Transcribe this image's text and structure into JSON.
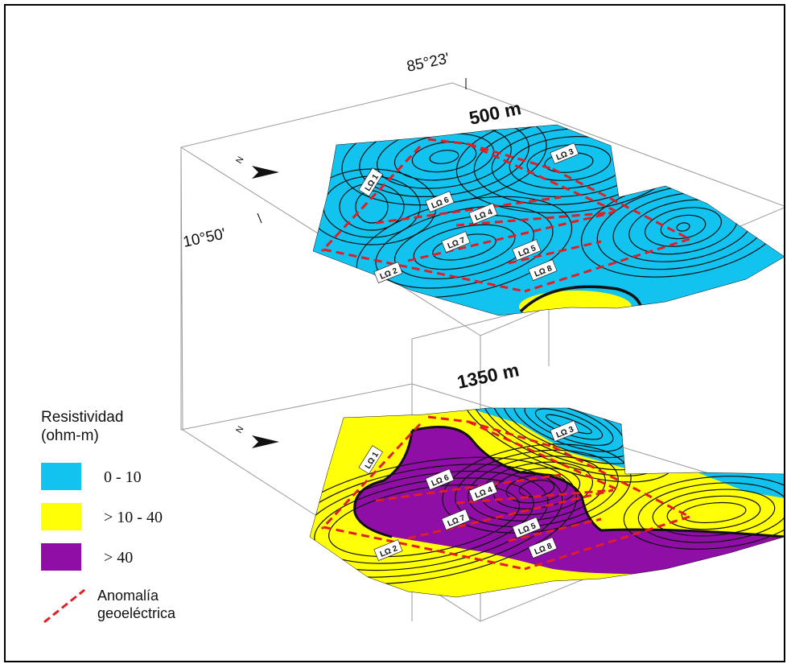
{
  "coordinates": {
    "longitude": "85°23'",
    "latitude": "10°50'"
  },
  "slices": [
    {
      "depth_label": "500 m"
    },
    {
      "depth_label": "1350 m"
    }
  ],
  "north_label": "N",
  "anomaly_labels": [
    "LΩ 1",
    "LΩ 2",
    "LΩ 3",
    "LΩ 4",
    "LΩ 5",
    "LΩ 6",
    "LΩ 7",
    "LΩ 8"
  ],
  "legend": {
    "title_line1": "Resistividad",
    "title_line2": "(ohm-m)",
    "classes": [
      {
        "label": "0 - 10",
        "color": "#12c2ef"
      },
      {
        "label": "> 10 - 40",
        "color": "#ffff08"
      },
      {
        "label": "> 40",
        "color": "#8e0ea6"
      }
    ],
    "anomaly_line1": "Anomalía",
    "anomaly_line2": "geoeléctrica",
    "anomaly_color": "#e21e24"
  },
  "colors": {
    "low": "#12c2ef",
    "mid": "#ffff08",
    "high": "#8e0ea6",
    "contour": "#111111",
    "box": "#9a9a9a"
  }
}
